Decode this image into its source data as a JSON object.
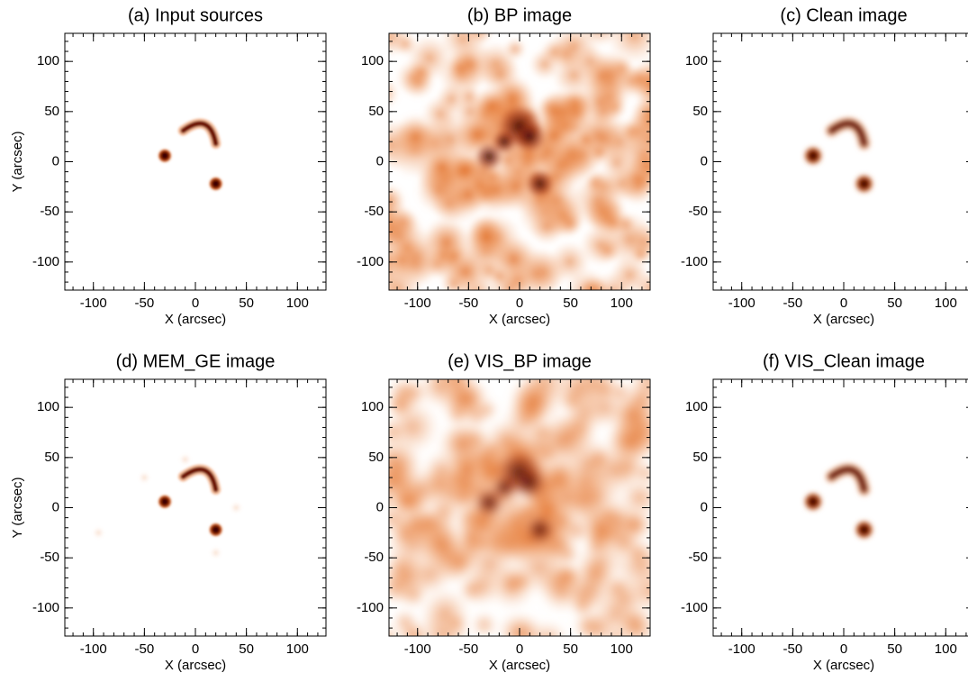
{
  "chart_data": [
    {
      "type": "image",
      "title": "(a) Input sources",
      "xlabel": "X (arcsec)",
      "ylabel": "Y (arcsec)",
      "xlim": [
        -128,
        128
      ],
      "ylim": [
        -128,
        128
      ],
      "xticks": [
        -100,
        -50,
        0,
        50,
        100
      ],
      "yticks": [
        -100,
        -50,
        0,
        50,
        100
      ]
    },
    {
      "type": "image",
      "title": "(b) BP image",
      "xlabel": "X (arcsec)",
      "xlim": [
        -128,
        128
      ],
      "ylim": [
        -128,
        128
      ],
      "xticks": [
        -100,
        -50,
        0,
        50,
        100
      ],
      "yticks": [
        -100,
        -50,
        0,
        50,
        100
      ]
    },
    {
      "type": "image",
      "title": "(c) Clean image",
      "xlabel": "X (arcsec)",
      "xlim": [
        -128,
        128
      ],
      "ylim": [
        -128,
        128
      ],
      "xticks": [
        -100,
        -50,
        0,
        50,
        100
      ],
      "yticks": [
        -100,
        -50,
        0,
        50,
        100
      ]
    },
    {
      "type": "image",
      "title": "(d) MEM_GE image",
      "xlabel": "X (arcsec)",
      "ylabel": "Y (arcsec)",
      "xlim": [
        -128,
        128
      ],
      "ylim": [
        -128,
        128
      ],
      "xticks": [
        -100,
        -50,
        0,
        50,
        100
      ],
      "yticks": [
        -100,
        -50,
        0,
        50,
        100
      ]
    },
    {
      "type": "image",
      "title": "(e) VIS_BP image",
      "xlabel": "X (arcsec)",
      "xlim": [
        -128,
        128
      ],
      "ylim": [
        -128,
        128
      ],
      "xticks": [
        -100,
        -50,
        0,
        50,
        100
      ],
      "yticks": [
        -100,
        -50,
        0,
        50,
        100
      ]
    },
    {
      "type": "image",
      "title": "(f) VIS_Clean image",
      "xlabel": "X (arcsec)",
      "xlim": [
        -128,
        128
      ],
      "ylim": [
        -128,
        128
      ],
      "xticks": [
        -100,
        -50,
        0,
        50,
        100
      ],
      "yticks": [
        -100,
        -50,
        0,
        50,
        100
      ]
    }
  ]
}
